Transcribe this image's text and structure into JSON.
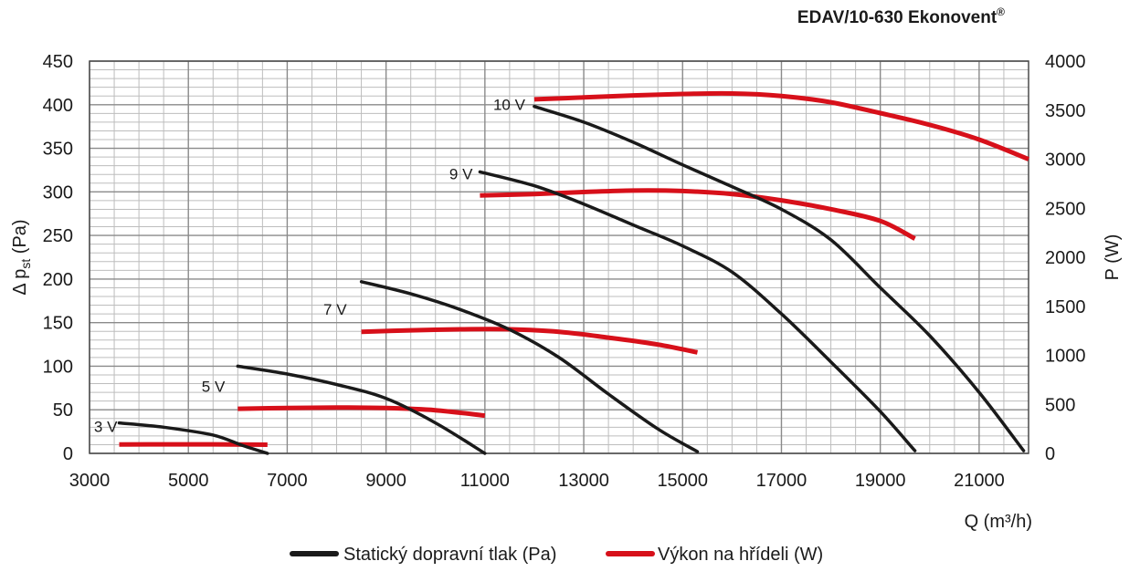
{
  "chart_data": {
    "type": "line",
    "title": "EDAV/10-630 Ekonovent",
    "title_mark": "®",
    "xlabel": "Q (m³/h)",
    "ylabel_left": {
      "prefix": "Δ p",
      "sub": "st",
      "suffix": " (Pa)"
    },
    "ylabel_right": "P (W)",
    "xlim": [
      3000,
      22000
    ],
    "ylim_left": [
      0,
      450
    ],
    "ylim_right": [
      0,
      4000
    ],
    "x_ticks": [
      3000,
      5000,
      7000,
      9000,
      11000,
      13000,
      15000,
      17000,
      19000,
      21000
    ],
    "y_ticks_left": [
      0,
      50,
      100,
      150,
      200,
      250,
      300,
      350,
      400,
      450
    ],
    "y_ticks_right": [
      0,
      500,
      1000,
      1500,
      2000,
      2500,
      3000,
      3500,
      4000
    ],
    "grid": true,
    "legend": {
      "position": "bottom",
      "items": [
        {
          "name": "Statický dopravní tlak (Pa)",
          "color": "#1a1a1a"
        },
        {
          "name": "Výkon na hřídeli (W)",
          "color": "#d7101a"
        }
      ]
    },
    "pressure_series": [
      {
        "label": "3 V",
        "points": [
          [
            3600,
            35
          ],
          [
            4500,
            30
          ],
          [
            5500,
            21
          ],
          [
            6100,
            9
          ],
          [
            6600,
            0
          ]
        ]
      },
      {
        "label": "5 V",
        "points": [
          [
            6000,
            100
          ],
          [
            7000,
            91
          ],
          [
            8000,
            79
          ],
          [
            9000,
            63
          ],
          [
            10000,
            35
          ],
          [
            11000,
            0
          ]
        ]
      },
      {
        "label": "7 V",
        "points": [
          [
            8500,
            197
          ],
          [
            9500,
            183
          ],
          [
            10500,
            165
          ],
          [
            11500,
            142
          ],
          [
            12500,
            110
          ],
          [
            13500,
            68
          ],
          [
            14500,
            28
          ],
          [
            15300,
            2
          ]
        ]
      },
      {
        "label": "9 V",
        "points": [
          [
            10900,
            323
          ],
          [
            12000,
            307
          ],
          [
            13000,
            286
          ],
          [
            14000,
            262
          ],
          [
            15000,
            238
          ],
          [
            16000,
            208
          ],
          [
            17000,
            160
          ],
          [
            18000,
            105
          ],
          [
            19000,
            48
          ],
          [
            19700,
            3
          ]
        ]
      },
      {
        "label": "10 V",
        "points": [
          [
            12000,
            398
          ],
          [
            13000,
            380
          ],
          [
            14000,
            357
          ],
          [
            15000,
            331
          ],
          [
            16000,
            306
          ],
          [
            17000,
            280
          ],
          [
            18000,
            245
          ],
          [
            19000,
            190
          ],
          [
            20000,
            135
          ],
          [
            21000,
            70
          ],
          [
            21900,
            3
          ]
        ]
      }
    ],
    "power_series": [
      {
        "label": "3 V",
        "points": [
          [
            3600,
            90
          ],
          [
            4500,
            92
          ],
          [
            5500,
            92
          ],
          [
            6600,
            88
          ]
        ]
      },
      {
        "label": "5 V",
        "points": [
          [
            6000,
            455
          ],
          [
            7000,
            463
          ],
          [
            8000,
            468
          ],
          [
            9000,
            462
          ],
          [
            10000,
            440
          ],
          [
            11000,
            385
          ]
        ]
      },
      {
        "label": "7 V",
        "points": [
          [
            8500,
            1240
          ],
          [
            9500,
            1255
          ],
          [
            10500,
            1265
          ],
          [
            11500,
            1265
          ],
          [
            12500,
            1240
          ],
          [
            13500,
            1180
          ],
          [
            14500,
            1110
          ],
          [
            15300,
            1030
          ]
        ]
      },
      {
        "label": "9 V",
        "points": [
          [
            10900,
            2630
          ],
          [
            12000,
            2645
          ],
          [
            13000,
            2665
          ],
          [
            14000,
            2680
          ],
          [
            15000,
            2675
          ],
          [
            16000,
            2645
          ],
          [
            17000,
            2580
          ],
          [
            18000,
            2490
          ],
          [
            19000,
            2370
          ],
          [
            19700,
            2190
          ]
        ]
      },
      {
        "label": "10 V",
        "points": [
          [
            12000,
            3610
          ],
          [
            13000,
            3630
          ],
          [
            14000,
            3650
          ],
          [
            15000,
            3665
          ],
          [
            16000,
            3670
          ],
          [
            17000,
            3645
          ],
          [
            18000,
            3580
          ],
          [
            19000,
            3470
          ],
          [
            20000,
            3350
          ],
          [
            21000,
            3200
          ],
          [
            22000,
            3000
          ]
        ]
      }
    ]
  }
}
